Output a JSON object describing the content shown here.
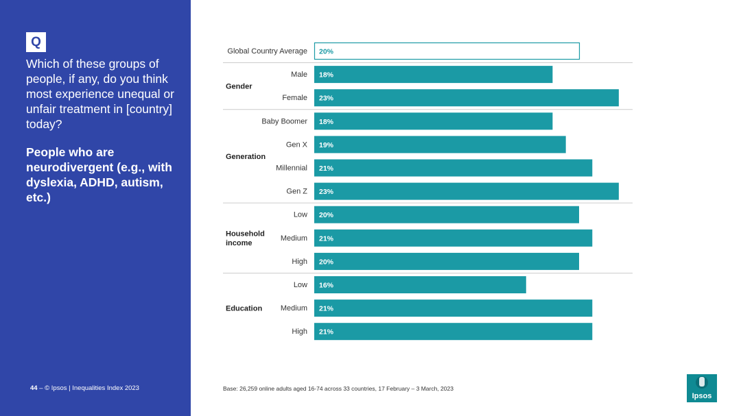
{
  "question_badge": "Q",
  "question_text": "Which of these groups of people, if any, do you think most experience unequal or unfair treatment in [country] today?",
  "subject_text": "People who are neurodivergent (e.g., with dyslexia, ADHD, autism, etc.)",
  "footer": {
    "page": "44",
    "dash": "–",
    "source": "© Ipsos | Inequalities Index 2023"
  },
  "base_note": "Base: 26,259 online adults aged 16-74 across 33 countries, 17 February – 3 March, 2023",
  "logo_text": "Ipsos",
  "colors": {
    "panel": "#3046a8",
    "bar": "#1b9aa5",
    "outline": "#1b9aa5",
    "separator": "#cccccc"
  },
  "chart_data": {
    "type": "bar",
    "orientation": "horizontal",
    "value_suffix": "%",
    "xlim": [
      0,
      25
    ],
    "rows": [
      {
        "group": "",
        "label": "Global Country Average",
        "value": 20,
        "style": "outline"
      },
      {
        "group": "Gender",
        "label": "Male",
        "value": 18
      },
      {
        "group": "Gender",
        "label": "Female",
        "value": 23
      },
      {
        "group": "Generation",
        "label": "Baby Boomer",
        "value": 18
      },
      {
        "group": "Generation",
        "label": "Gen X",
        "value": 19
      },
      {
        "group": "Generation",
        "label": "Millennial",
        "value": 21
      },
      {
        "group": "Generation",
        "label": "Gen Z",
        "value": 23
      },
      {
        "group": "Household income",
        "label": "Low",
        "value": 20
      },
      {
        "group": "Household income",
        "label": "Medium",
        "value": 21
      },
      {
        "group": "Household income",
        "label": "High",
        "value": 20
      },
      {
        "group": "Education",
        "label": "Low",
        "value": 16
      },
      {
        "group": "Education",
        "label": "Medium",
        "value": 21
      },
      {
        "group": "Education",
        "label": "High",
        "value": 21
      }
    ],
    "groups": [
      {
        "name": "Gender",
        "lines": [
          "Gender"
        ]
      },
      {
        "name": "Generation",
        "lines": [
          "Generation"
        ]
      },
      {
        "name": "Household income",
        "lines": [
          "Household",
          "income"
        ]
      },
      {
        "name": "Education",
        "lines": [
          "Education"
        ]
      }
    ]
  }
}
